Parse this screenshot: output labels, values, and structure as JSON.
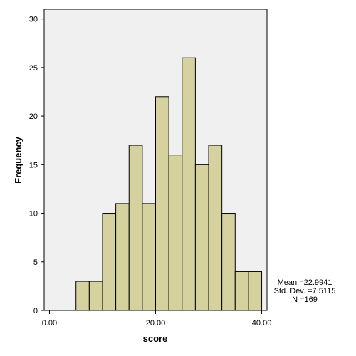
{
  "chart_data": {
    "type": "bar",
    "subtype": "histogram",
    "xlabel": "score",
    "ylabel": "Frequency",
    "xlim": [
      -1,
      41
    ],
    "ylim": [
      0,
      31
    ],
    "x_ticks": [
      0,
      20,
      40
    ],
    "x_tick_labels": [
      "0.00",
      "20.00",
      "40.00"
    ],
    "y_ticks": [
      0,
      5,
      10,
      15,
      20,
      25,
      30
    ],
    "y_tick_labels": [
      "0",
      "5",
      "10",
      "15",
      "20",
      "25",
      "30"
    ],
    "bin_width": 2.5,
    "bin_starts": [
      5,
      7.5,
      10,
      12.5,
      15,
      17.5,
      20,
      22.5,
      25,
      27.5,
      30,
      32.5,
      35,
      37.5
    ],
    "values": [
      3,
      3,
      10,
      11,
      17,
      11,
      22,
      16,
      26,
      15,
      17,
      10,
      4,
      4
    ],
    "bar_color": "#d6d2a0",
    "plot_background": "#f0f0f0",
    "grid": false,
    "legend": null
  },
  "stats": {
    "mean": "Mean =22.9941",
    "std": "Std. Dev. =7.5115",
    "n": "N =169"
  }
}
